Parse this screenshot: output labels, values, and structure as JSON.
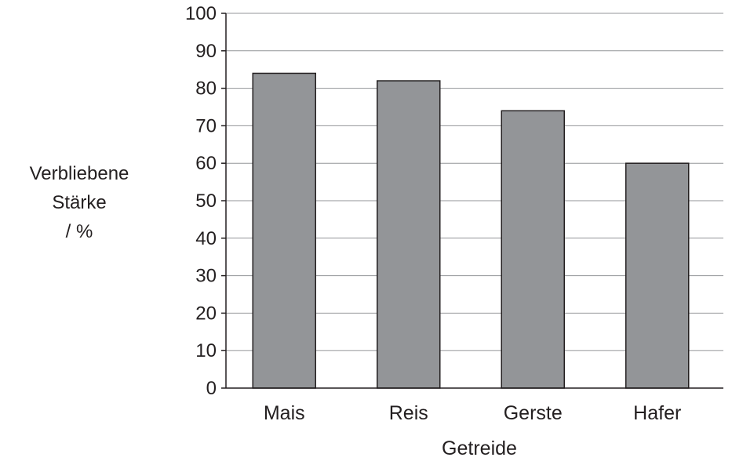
{
  "chart_data": {
    "type": "bar",
    "title": "",
    "xlabel": "Getreide",
    "ylabel_lines": [
      "Verbliebene",
      "Stärke",
      "/ %"
    ],
    "categories": [
      "Mais",
      "Reis",
      "Gerste",
      "Hafer"
    ],
    "values": [
      84,
      82,
      74,
      60
    ],
    "ylim": [
      0,
      100
    ],
    "yticks": [
      0,
      10,
      20,
      30,
      40,
      50,
      60,
      70,
      80,
      90,
      100
    ],
    "grid": true,
    "colors": {
      "bar_fill": "#939598",
      "bar_stroke": "#231f20",
      "grid": "#939598",
      "axis": "#231f20",
      "text": "#231f20"
    }
  }
}
